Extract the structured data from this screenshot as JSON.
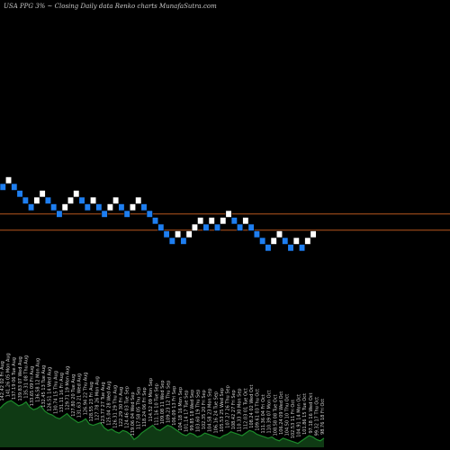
{
  "header": {
    "title": "USA PPG 3% ~  Closing Daily data  Renko  charts MunafaSutra.com"
  },
  "colors": {
    "background": "#000000",
    "up_brick": "#ffffff",
    "down_brick": "#1e7ef0",
    "brick_border": "#000000",
    "level_line": "#b5561e",
    "volume_area": "#0f3a14",
    "volume_line": "#1c8a2a",
    "label_text": "#d0d0d0"
  },
  "chart_data": {
    "type": "renko",
    "title": "USA PPG 3% ~  Closing Daily data  Renko  charts MunafaSutra.com",
    "brick_size": "3%",
    "bricks": [
      {
        "level": 0,
        "dir": "down"
      },
      {
        "level": 1,
        "dir": "up"
      },
      {
        "level": 0,
        "dir": "down"
      },
      {
        "level": -1,
        "dir": "down"
      },
      {
        "level": -2,
        "dir": "down"
      },
      {
        "level": -3,
        "dir": "down"
      },
      {
        "level": -2,
        "dir": "up"
      },
      {
        "level": -1,
        "dir": "up"
      },
      {
        "level": -2,
        "dir": "down"
      },
      {
        "level": -3,
        "dir": "down"
      },
      {
        "level": -4,
        "dir": "down"
      },
      {
        "level": -3,
        "dir": "up"
      },
      {
        "level": -2,
        "dir": "up"
      },
      {
        "level": -1,
        "dir": "up"
      },
      {
        "level": -2,
        "dir": "down"
      },
      {
        "level": -3,
        "dir": "down"
      },
      {
        "level": -2,
        "dir": "up"
      },
      {
        "level": -3,
        "dir": "down"
      },
      {
        "level": -4,
        "dir": "down"
      },
      {
        "level": -3,
        "dir": "up"
      },
      {
        "level": -2,
        "dir": "up"
      },
      {
        "level": -3,
        "dir": "down"
      },
      {
        "level": -4,
        "dir": "down"
      },
      {
        "level": -3,
        "dir": "up"
      },
      {
        "level": -2,
        "dir": "up"
      },
      {
        "level": -3,
        "dir": "down"
      },
      {
        "level": -4,
        "dir": "down"
      },
      {
        "level": -5,
        "dir": "down"
      },
      {
        "level": -6,
        "dir": "down"
      },
      {
        "level": -7,
        "dir": "down"
      },
      {
        "level": -8,
        "dir": "down"
      },
      {
        "level": -7,
        "dir": "up"
      },
      {
        "level": -8,
        "dir": "down"
      },
      {
        "level": -7,
        "dir": "up"
      },
      {
        "level": -6,
        "dir": "up"
      },
      {
        "level": -5,
        "dir": "up"
      },
      {
        "level": -6,
        "dir": "down"
      },
      {
        "level": -5,
        "dir": "up"
      },
      {
        "level": -6,
        "dir": "down"
      },
      {
        "level": -5,
        "dir": "up"
      },
      {
        "level": -4,
        "dir": "up"
      },
      {
        "level": -5,
        "dir": "down"
      },
      {
        "level": -6,
        "dir": "down"
      },
      {
        "level": -5,
        "dir": "up"
      },
      {
        "level": -6,
        "dir": "down"
      },
      {
        "level": -7,
        "dir": "down"
      },
      {
        "level": -8,
        "dir": "down"
      },
      {
        "level": -9,
        "dir": "down"
      },
      {
        "level": -8,
        "dir": "up"
      },
      {
        "level": -7,
        "dir": "up"
      },
      {
        "level": -8,
        "dir": "down"
      },
      {
        "level": -9,
        "dir": "down"
      },
      {
        "level": -8,
        "dir": "up"
      },
      {
        "level": -9,
        "dir": "down"
      },
      {
        "level": -8,
        "dir": "up"
      },
      {
        "level": -7,
        "dir": "up"
      }
    ],
    "reference_lines": [
      {
        "level": -4.0
      },
      {
        "level": -6.4
      }
    ],
    "volume": [
      60,
      66,
      70,
      72,
      68,
      64,
      66,
      70,
      62,
      58,
      60,
      64,
      56,
      52,
      50,
      46,
      44,
      48,
      52,
      46,
      42,
      38,
      40,
      44,
      36,
      34,
      36,
      38,
      30,
      26,
      28,
      24,
      22,
      26,
      24,
      20,
      12,
      16,
      22,
      26,
      30,
      34,
      28,
      26,
      30,
      34,
      32,
      28,
      24,
      20,
      18,
      22,
      20,
      16,
      18,
      22,
      20,
      18,
      16,
      14,
      18,
      20,
      24,
      22,
      20,
      18,
      22,
      26,
      24,
      20,
      18,
      16,
      14,
      16,
      12,
      10,
      14,
      12,
      10,
      8,
      6,
      10,
      14,
      18,
      16,
      12,
      10,
      14
    ],
    "volume_labels": [
      "142.42 02 Fri Aug",
      "141.26 05 Mon Aug",
      "137.19 06 Tue Aug",
      "139.83 07 Wed Aug",
      "135.31 08 Thu Aug",
      "133.65 09 Fri Aug",
      "136.58 12 Mon Aug",
      "132.45 13 Tue Aug",
      "126.51 14 Wed Aug",
      "130.74 15 Thu Aug",
      "131.11 16 Fri Aug",
      "129.71 19 Mon Aug",
      "127.80 20 Tue Aug",
      "131.63 21 Wed Aug",
      "126.94 22 Thu Aug",
      "128.55 23 Fri Aug",
      "127.78 26 Mon Aug",
      "123.77 27 Tue Aug",
      "125.04 28 Wed Aug",
      "126.31 29 Thu Aug",
      "122.29 30 Fri Aug",
      "124.46 03 Tue Sep",
      "119.06 04 Wed Sep",
      "117.58 05 Thu Sep",
      "118.24 06 Fri Sep",
      "114.52 09 Mon Sep",
      "111.16 10 Tue Sep",
      "109.08 11 Wed Sep",
      "109.23 12 Thu Sep",
      "106.09 13 Fri Sep",
      "104.18 16 Mon Sep",
      "101.14 17 Tue Sep",
      "99.85 18 Wed Sep",
      "103.60 19 Thu Sep",
      "102.35 20 Fri Sep",
      "104.58 23 Mon Sep",
      "106.16 24 Tue Sep",
      "105.53 25 Wed Sep",
      "107.27 26 Thu Sep",
      "108.42 27 Fri Sep",
      "110.33 30 Mon Sep",
      "112.03 01 Tue Oct",
      "108.24 02 Wed Oct",
      "109.61 03 Thu Oct",
      "111.36 04 Fri Oct",
      "110.39 07 Mon Oct",
      "108.58 08 Tue Oct",
      "106.24 09 Wed Oct",
      "104.50 10 Thu Oct",
      "102.53 11 Fri Oct",
      "104.91 14 Mon Oct",
      "101.86 15 Tue Oct",
      "97.18 16 Wed Oct",
      "99.32 17 Thu Oct",
      "98.76 18 Fri Oct"
    ]
  }
}
